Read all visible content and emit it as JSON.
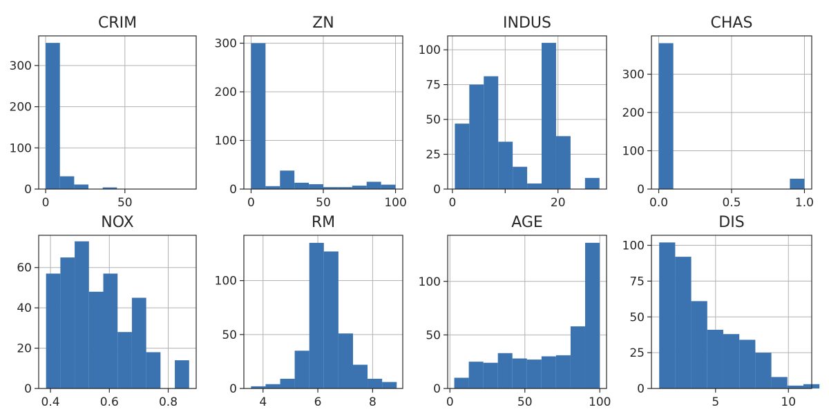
{
  "colors": {
    "bar": "#3b73b0",
    "grid": "#b0b0b0",
    "frame": "#262626",
    "background": "#ffffff"
  },
  "chart_data": [
    {
      "type": "bar",
      "title": "CRIM",
      "grid": true,
      "bins": [
        [
          0,
          9
        ],
        [
          9,
          18
        ],
        [
          18,
          27
        ],
        [
          27,
          36
        ],
        [
          36,
          45
        ],
        [
          45,
          54
        ],
        [
          54,
          63
        ],
        [
          63,
          72
        ],
        [
          72,
          81
        ],
        [
          81,
          90
        ]
      ],
      "values": [
        355,
        31,
        11,
        0,
        4,
        0,
        0,
        0,
        0,
        0
      ],
      "xlim": [
        -4.4,
        95.0
      ],
      "ylim": [
        0,
        372
      ],
      "xticks": [
        0,
        50
      ],
      "yticks": [
        0,
        100,
        200,
        300
      ]
    },
    {
      "type": "bar",
      "title": "ZN",
      "grid": true,
      "bins": [
        [
          0,
          10
        ],
        [
          10,
          20
        ],
        [
          20,
          30
        ],
        [
          30,
          40
        ],
        [
          40,
          50
        ],
        [
          50,
          60
        ],
        [
          60,
          70
        ],
        [
          70,
          80
        ],
        [
          80,
          90
        ],
        [
          90,
          100
        ]
      ],
      "values": [
        300,
        6,
        38,
        13,
        10,
        4,
        4,
        7,
        15,
        9
      ],
      "xlim": [
        -5,
        105
      ],
      "ylim": [
        0,
        315
      ],
      "xticks": [
        0,
        50,
        100
      ],
      "yticks": [
        0,
        100,
        200,
        300
      ]
    },
    {
      "type": "bar",
      "title": "INDUS",
      "grid": true,
      "bins": [
        [
          0.46,
          3.2
        ],
        [
          3.2,
          5.94
        ],
        [
          5.94,
          8.68
        ],
        [
          8.68,
          11.42
        ],
        [
          11.42,
          14.16
        ],
        [
          14.16,
          16.9
        ],
        [
          16.9,
          19.64
        ],
        [
          19.64,
          22.38
        ],
        [
          22.38,
          25.12
        ],
        [
          25.12,
          27.86
        ]
      ],
      "values": [
        47,
        75,
        81,
        34,
        16,
        4,
        105,
        38,
        0,
        8
      ],
      "xlim": [
        -0.9,
        29.2
      ],
      "ylim": [
        0,
        110
      ],
      "xticks": [
        0,
        10,
        20
      ],
      "xtick_labels": [
        "0",
        "",
        "20"
      ],
      "yticks": [
        0,
        25,
        50,
        75,
        100
      ]
    },
    {
      "type": "bar",
      "title": "CHAS",
      "grid": true,
      "bins": [
        [
          0,
          0.1
        ],
        [
          0.1,
          0.2
        ],
        [
          0.2,
          0.3
        ],
        [
          0.3,
          0.4
        ],
        [
          0.4,
          0.5
        ],
        [
          0.5,
          0.6
        ],
        [
          0.6,
          0.7
        ],
        [
          0.7,
          0.8
        ],
        [
          0.8,
          0.9
        ],
        [
          0.9,
          1.0
        ]
      ],
      "values": [
        381,
        0,
        0,
        0,
        0,
        0,
        0,
        0,
        0,
        27
      ],
      "xlim": [
        -0.05,
        1.05
      ],
      "ylim": [
        0,
        400
      ],
      "xticks": [
        0.0,
        0.5,
        1.0
      ],
      "xtick_labels": [
        "0.0",
        "0.5",
        "1.0"
      ],
      "yticks": [
        0,
        100,
        200,
        300
      ]
    },
    {
      "type": "bar",
      "title": "NOX",
      "grid": true,
      "bins": [
        [
          0.385,
          0.4336
        ],
        [
          0.4336,
          0.4822
        ],
        [
          0.4822,
          0.5308
        ],
        [
          0.5308,
          0.5794
        ],
        [
          0.5794,
          0.628
        ],
        [
          0.628,
          0.6766
        ],
        [
          0.6766,
          0.7252
        ],
        [
          0.7252,
          0.7738
        ],
        [
          0.7738,
          0.8224
        ],
        [
          0.8224,
          0.871
        ]
      ],
      "values": [
        57,
        65,
        73,
        48,
        57,
        28,
        45,
        18,
        0,
        14
      ],
      "xlim": [
        0.36,
        0.895
      ],
      "ylim": [
        0,
        76
      ],
      "xticks": [
        0.4,
        0.6,
        0.8
      ],
      "xtick_labels": [
        "0.4",
        "0.6",
        "0.8"
      ],
      "yticks": [
        0,
        20,
        40,
        60
      ]
    },
    {
      "type": "bar",
      "title": "RM",
      "grid": true,
      "bins": [
        [
          3.561,
          4.093
        ],
        [
          4.093,
          4.625
        ],
        [
          4.625,
          5.156
        ],
        [
          5.156,
          5.688
        ],
        [
          5.688,
          6.22
        ],
        [
          6.22,
          6.752
        ],
        [
          6.752,
          7.284
        ],
        [
          7.284,
          7.815
        ],
        [
          7.815,
          8.347
        ],
        [
          8.347,
          8.879
        ]
      ],
      "values": [
        2,
        4,
        9,
        35,
        135,
        127,
        51,
        22,
        9,
        6
      ],
      "xlim": [
        3.3,
        9.1
      ],
      "ylim": [
        0,
        142
      ],
      "xticks": [
        4,
        6,
        8
      ],
      "yticks": [
        0,
        50,
        100
      ]
    },
    {
      "type": "bar",
      "title": "AGE",
      "grid": true,
      "bins": [
        [
          2.9,
          12.6
        ],
        [
          12.6,
          22.3
        ],
        [
          22.3,
          32.0
        ],
        [
          32.0,
          41.7
        ],
        [
          41.7,
          51.4
        ],
        [
          51.4,
          61.1
        ],
        [
          61.1,
          70.8
        ],
        [
          70.8,
          80.5
        ],
        [
          80.5,
          90.2
        ],
        [
          90.2,
          99.9
        ]
      ],
      "values": [
        10,
        25,
        24,
        33,
        28,
        27,
        30,
        31,
        58,
        136
      ],
      "xlim": [
        -1.5,
        104.5
      ],
      "ylim": [
        0,
        143
      ],
      "xticks": [
        0,
        50,
        100
      ],
      "yticks": [
        0,
        50,
        100
      ]
    },
    {
      "type": "bar",
      "title": "DIS",
      "grid": true,
      "bins": [
        [
          1.13,
          2.23
        ],
        [
          2.23,
          3.33
        ],
        [
          3.33,
          4.43
        ],
        [
          4.43,
          5.53
        ],
        [
          5.53,
          6.63
        ],
        [
          6.63,
          7.73
        ],
        [
          7.73,
          8.83
        ],
        [
          8.83,
          9.93
        ],
        [
          9.93,
          11.03
        ],
        [
          11.03,
          12.13
        ]
      ],
      "values": [
        102,
        92,
        61,
        41,
        38,
        34,
        25,
        8,
        2,
        3
      ],
      "xlim": [
        0.6,
        11.6
      ],
      "ylim": [
        0,
        107
      ],
      "xticks": [
        5,
        10
      ],
      "yticks": [
        0,
        25,
        50,
        75,
        100
      ]
    }
  ]
}
